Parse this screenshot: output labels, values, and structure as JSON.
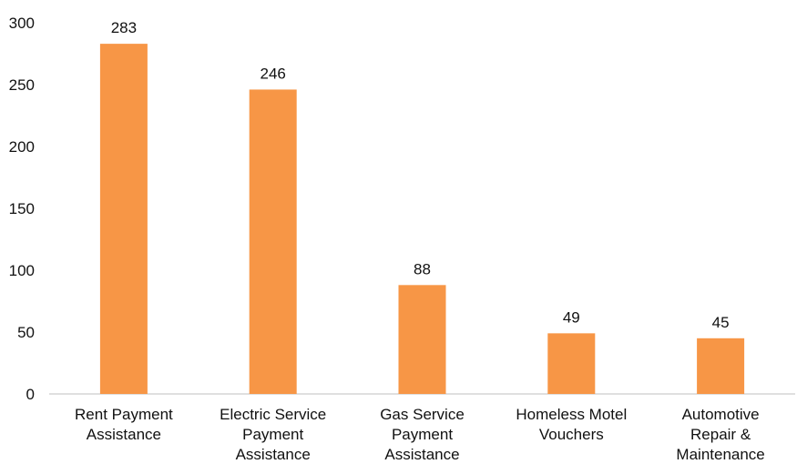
{
  "chart_data": {
    "type": "bar",
    "title": "",
    "xlabel": "",
    "ylabel": "",
    "categories": [
      [
        "Rent Payment",
        "Assistance"
      ],
      [
        "Electric Service",
        "Payment",
        "Assistance"
      ],
      [
        "Gas Service",
        "Payment",
        "Assistance"
      ],
      [
        "Homeless Motel",
        "Vouchers"
      ],
      [
        "Automotive",
        "Repair &",
        "Maintenance"
      ]
    ],
    "values": [
      283,
      246,
      88,
      49,
      45
    ],
    "ylim": [
      0,
      300
    ],
    "yticks": [
      0,
      50,
      100,
      150,
      200,
      250,
      300
    ],
    "grid": false,
    "legend": "none",
    "colors": {
      "bar": "#F79646",
      "axis": "#BFBFBF",
      "text": "#111111"
    }
  }
}
